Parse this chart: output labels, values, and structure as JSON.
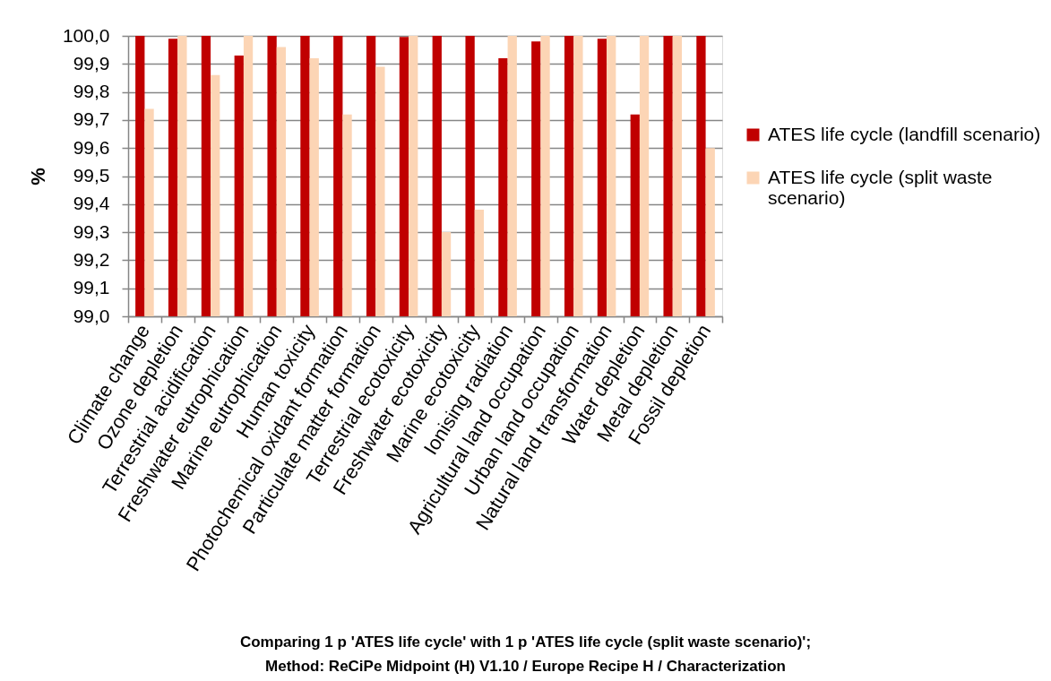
{
  "chart_data": {
    "type": "bar",
    "title": "Comparing 1 p 'ATES life cycle' with 1 p 'ATES life cycle (split waste scenario)';\nMethod: ReCiPe Midpoint (H) V1.10 / Europe Recipe H / Characterization",
    "ylabel": "%",
    "categories": [
      "Climate change",
      "Ozone depletion",
      "Terrestrial acidification",
      "Freshwater eutrophication",
      "Marine eutrophication",
      "Human toxicity",
      "Photochemical oxidant formation",
      "Particulate matter formation",
      "Terrestrial ecotoxicity",
      "Freshwater ecotoxicity",
      "Marine ecotoxicity",
      "Ionising radiation",
      "Agricultural land occupation",
      "Urban land occupation",
      "Natural land transformation",
      "Water depletion",
      "Metal depletion",
      "Fossil depletion"
    ],
    "series": [
      {
        "name": "ATES life cycle (landfill scenario)",
        "color": "#c00000",
        "values": [
          100,
          99.99,
          100,
          99.93,
          100,
          100,
          100,
          100,
          99.996,
          100,
          100,
          99.92,
          99.98,
          100,
          99.99,
          99.72,
          100,
          100
        ]
      },
      {
        "name": "ATES life cycle (split waste scenario)",
        "color": "#fcd5b5",
        "values": [
          99.74,
          100,
          99.86,
          100,
          99.96,
          99.92,
          99.72,
          99.89,
          100,
          99.3,
          99.38,
          100,
          100,
          100,
          100,
          100,
          100,
          99.6
        ]
      }
    ],
    "ylim": [
      99,
      100
    ],
    "yticks": [
      {
        "value": 99,
        "label": "99,0"
      },
      {
        "value": 99.1,
        "label": "99,1"
      },
      {
        "value": 99.2,
        "label": "99,2"
      },
      {
        "value": 99.3,
        "label": "99,3"
      },
      {
        "value": 99.4,
        "label": "99,4"
      },
      {
        "value": 99.5,
        "label": "99,5"
      },
      {
        "value": 99.6,
        "label": "99,6"
      },
      {
        "value": 99.7,
        "label": "99,7"
      },
      {
        "value": 99.8,
        "label": "99,8"
      },
      {
        "value": 99.9,
        "label": "99,9"
      },
      {
        "value": 100,
        "label": "100,0"
      }
    ],
    "grid": "y",
    "legend": "right"
  }
}
